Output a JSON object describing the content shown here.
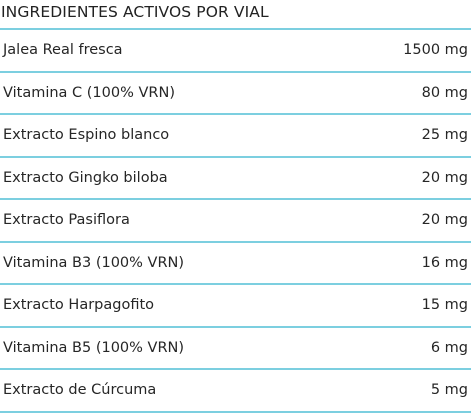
{
  "table": {
    "title": "INGREDIENTES ACTIVOS POR VIAL",
    "rows": [
      {
        "name": "Jalea Real fresca",
        "amount": "1500 mg"
      },
      {
        "name": "Vitamina C (100% VRN)",
        "amount": "80 mg"
      },
      {
        "name": "Extracto Espino blanco",
        "amount": "25 mg"
      },
      {
        "name": "Extracto Gingko biloba",
        "amount": "20 mg"
      },
      {
        "name": "Extracto Pasiflora",
        "amount": "20 mg"
      },
      {
        "name": "Vitamina B3 (100% VRN)",
        "amount": "16 mg"
      },
      {
        "name": "Extracto Harpagofito",
        "amount": "15 mg"
      },
      {
        "name": "Vitamina B5 (100% VRN)",
        "amount": "6 mg"
      },
      {
        "name": "Extracto de Cúrcuma",
        "amount": "5 mg"
      }
    ]
  },
  "colors": {
    "divider": "#7ccfe0",
    "text": "#262626"
  }
}
